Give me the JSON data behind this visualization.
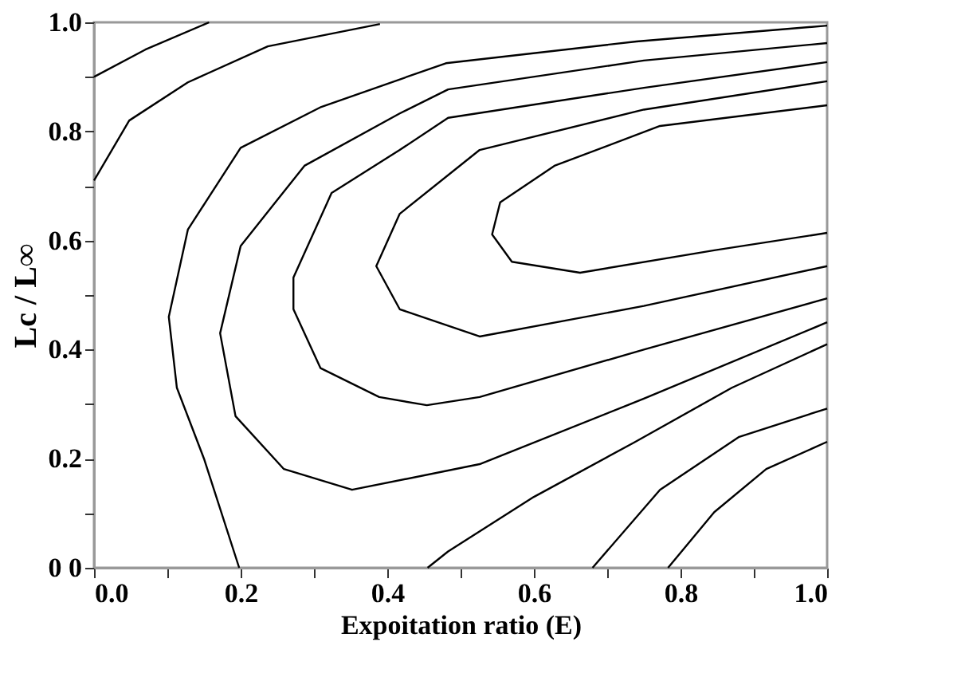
{
  "chart_data": {
    "type": "line",
    "xlabel": "Expoitation ratio (E)",
    "ylabel": "Lc / L∞",
    "xlim": [
      0,
      1
    ],
    "ylim": [
      0,
      1
    ],
    "xticks": [
      {
        "value": 0,
        "label": "0.0"
      },
      {
        "value": 0.1,
        "label": null
      },
      {
        "value": 0.2,
        "label": "0.2"
      },
      {
        "value": 0.3,
        "label": null
      },
      {
        "value": 0.4,
        "label": "0.4"
      },
      {
        "value": 0.5,
        "label": null
      },
      {
        "value": 0.6,
        "label": "0.6"
      },
      {
        "value": 0.7,
        "label": null
      },
      {
        "value": 0.8,
        "label": "0.8"
      },
      {
        "value": 0.9,
        "label": null
      },
      {
        "value": 1,
        "label": "1.0"
      }
    ],
    "yticks": [
      {
        "value": 0,
        "label": "0 0"
      },
      {
        "value": 0.1,
        "label": null
      },
      {
        "value": 0.2,
        "label": "0.2"
      },
      {
        "value": 0.3,
        "label": null
      },
      {
        "value": 0.4,
        "label": "0.4"
      },
      {
        "value": 0.5,
        "label": null
      },
      {
        "value": 0.6,
        "label": "0.6"
      },
      {
        "value": 0.7,
        "label": null
      },
      {
        "value": 0.8,
        "label": "0.8"
      },
      {
        "value": 0.9,
        "label": null
      },
      {
        "value": 1,
        "label": "1.0"
      }
    ],
    "grid": false,
    "legend": false,
    "marker": "none",
    "line_style": "solid",
    "series": [
      {
        "color": "#000000",
        "x": [
          0,
          0.07,
          0.157
        ],
        "values": [
          0.9,
          0.95,
          1.0
        ]
      },
      {
        "color": "#000000",
        "x": [
          0,
          0.048,
          0.128,
          0.237,
          0.39
        ],
        "values": [
          0.71,
          0.82,
          0.89,
          0.956,
          0.997
        ]
      },
      {
        "color": "#000000",
        "x": [
          0.198,
          0.15,
          0.113,
          0.102,
          0.128,
          0.2,
          0.31,
          0.48,
          0.74,
          1.0
        ],
        "values": [
          0,
          0.2,
          0.33,
          0.46,
          0.62,
          0.77,
          0.845,
          0.925,
          0.965,
          0.994
        ]
      },
      {
        "color": "#000000",
        "x": [
          1.0,
          0.75,
          0.526,
          0.352,
          0.259,
          0.193,
          0.172,
          0.2,
          0.287,
          0.417,
          0.483,
          0.75,
          1.0
        ],
        "values": [
          0.45,
          0.31,
          0.19,
          0.143,
          0.181,
          0.278,
          0.43,
          0.59,
          0.737,
          0.833,
          0.877,
          0.93,
          0.962
        ]
      },
      {
        "color": "#000000",
        "x": [
          1.0,
          0.75,
          0.526,
          0.454,
          0.389,
          0.309,
          0.272,
          0.272,
          0.324,
          0.417,
          0.483,
          0.75,
          1.0
        ],
        "values": [
          0.494,
          0.4,
          0.313,
          0.298,
          0.313,
          0.366,
          0.474,
          0.532,
          0.687,
          0.766,
          0.825,
          0.88,
          0.927
        ]
      },
      {
        "color": "#000000",
        "x": [
          1.0,
          0.75,
          0.526,
          0.417,
          0.385,
          0.417,
          0.526,
          0.75,
          1.0
        ],
        "values": [
          0.553,
          0.48,
          0.424,
          0.474,
          0.553,
          0.649,
          0.766,
          0.84,
          0.892
        ]
      },
      {
        "color": "#000000",
        "x": [
          1.0,
          0.846,
          0.663,
          0.57,
          0.543,
          0.554,
          0.628,
          0.772,
          1.0
        ],
        "values": [
          0.614,
          0.582,
          0.541,
          0.561,
          0.611,
          0.67,
          0.737,
          0.81,
          0.848
        ]
      },
      {
        "color": "#000000",
        "x": [
          0.455,
          0.483,
          0.6,
          0.737,
          0.87,
          1.0
        ],
        "values": [
          0,
          0.03,
          0.13,
          0.23,
          0.33,
          0.41
        ]
      },
      {
        "color": "#000000",
        "x": [
          0.68,
          0.772,
          0.88,
          1.0
        ],
        "values": [
          0,
          0.143,
          0.24,
          0.292
        ]
      },
      {
        "color": "#000000",
        "x": [
          0.783,
          0.846,
          0.917,
          1.0
        ],
        "values": [
          0,
          0.102,
          0.181,
          0.231
        ]
      }
    ]
  }
}
